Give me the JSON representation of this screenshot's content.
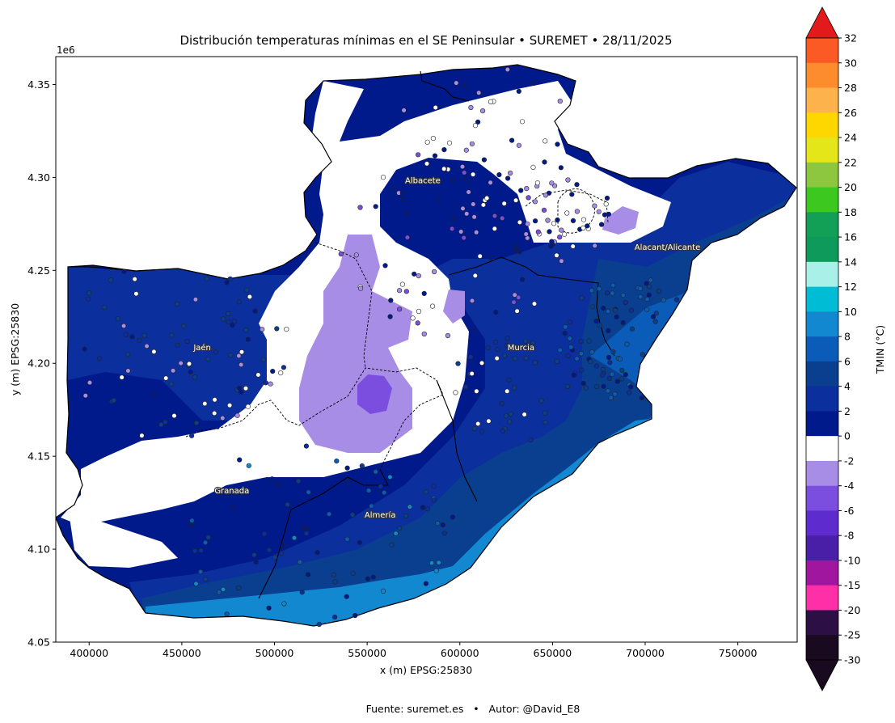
{
  "title": "Distribución temperaturas mínimas en el SE Peninsular • SUREMET • 28/11/2025",
  "footer": "Fuente: suremet.es   •   Autor: @David_E8",
  "x_axis": {
    "label": "x (m) EPSG:25830",
    "ticks": [
      "400000",
      "450000",
      "500000",
      "550000",
      "600000",
      "650000",
      "700000",
      "750000"
    ],
    "range": [
      382000,
      782000
    ]
  },
  "y_axis": {
    "label": "y (m) EPSG:25830",
    "offset_text": "1e6",
    "ticks": [
      "4.05",
      "4.10",
      "4.15",
      "4.20",
      "4.25",
      "4.30",
      "4.35"
    ],
    "range": [
      4050000,
      4365000
    ]
  },
  "colorbar": {
    "label": "TMIN (°C)",
    "ticks": [
      "32",
      "30",
      "28",
      "26",
      "24",
      "22",
      "20",
      "18",
      "16",
      "14",
      "12",
      "10",
      "8",
      "6",
      "4",
      "2",
      "0",
      "-2",
      "-4",
      "-6",
      "-8",
      "-10",
      "-15",
      "-20",
      "-25",
      "-30"
    ],
    "colors": [
      "#e31a1c",
      "#fb5a24",
      "#fd8d2c",
      "#feb24c",
      "#ffd700",
      "#e4e61a",
      "#8dc63f",
      "#3cc81e",
      "#11a055",
      "#0d9a5a",
      "#a8f0e8",
      "#00bcd4",
      "#1188d0",
      "#0a5cb8",
      "#0a3f8f",
      "#0c2f9e",
      "#001a8c",
      "#ffffff",
      "#a88de6",
      "#7b4ee0",
      "#5e2bcf",
      "#4a1fa8",
      "#a0169e",
      "#ff2fa8",
      "#2b0f45",
      "#1a0a1f"
    ],
    "extend_max_color": "#e31a1c",
    "extend_min_color": "#1a0a1f"
  },
  "cities": [
    {
      "name": "Albacete",
      "x": 580000,
      "y": 4297000
    },
    {
      "name": "Jaén",
      "x": 461000,
      "y": 4207000
    },
    {
      "name": "Murcia",
      "x": 633000,
      "y": 4207000
    },
    {
      "name": "Alacant/Alicante",
      "x": 712000,
      "y": 4261000
    },
    {
      "name": "Granada",
      "x": 477000,
      "y": 4130000
    },
    {
      "name": "Almería",
      "x": 557000,
      "y": 4117000
    }
  ],
  "map_colors": {
    "warm_coast": "#1188d0",
    "mild": "#0a5cb8",
    "cool": "#0a3f8f",
    "cold": "#0c2f9e",
    "colder": "#001a8c",
    "zero_band": "#ffffff",
    "frost": "#a88de6",
    "hard_frost": "#7b4ee0"
  }
}
